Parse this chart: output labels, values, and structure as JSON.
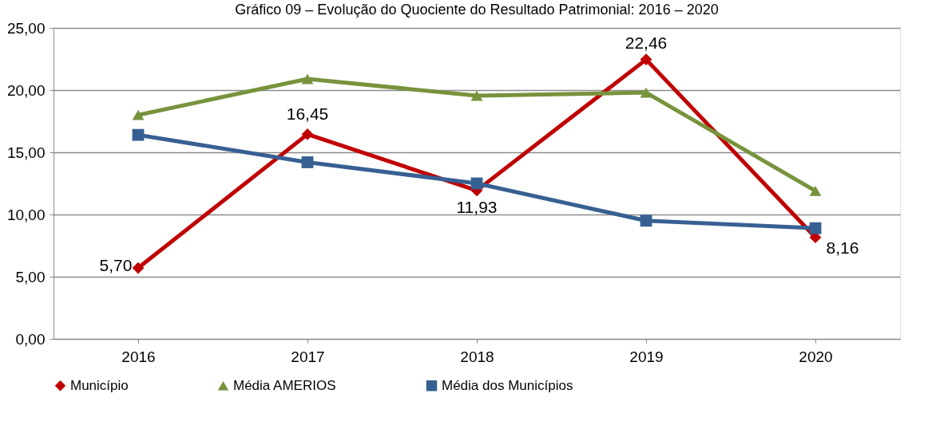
{
  "chart_data": {
    "type": "line",
    "title": "Gráfico 09 – Evolução do Quociente do Resultado Patrimonial: 2016 – 2020",
    "categories": [
      "2016",
      "2017",
      "2018",
      "2019",
      "2020"
    ],
    "series": [
      {
        "name": "Município",
        "color": "#c00000",
        "marker": "diamond",
        "values": [
          5.7,
          16.45,
          11.93,
          22.46,
          8.16
        ],
        "value_labels": [
          "5,70",
          "16,45",
          "11,93",
          "22,46",
          "8,16"
        ]
      },
      {
        "name": "Média AMERIOS",
        "color": "#77933c",
        "marker": "triangle",
        "values": [
          18.0,
          20.9,
          19.55,
          19.8,
          11.9
        ]
      },
      {
        "name": "Média dos Municípios",
        "color": "#376092",
        "marker": "square",
        "values": [
          16.4,
          14.2,
          12.5,
          9.5,
          8.9
        ]
      }
    ],
    "ylim": [
      0,
      25
    ],
    "yticks": [
      {
        "value": 0,
        "label": "0,00"
      },
      {
        "value": 5,
        "label": "5,00"
      },
      {
        "value": 10,
        "label": "10,00"
      },
      {
        "value": 15,
        "label": "15,00"
      },
      {
        "value": 20,
        "label": "20,00"
      },
      {
        "value": 25,
        "label": "25,00"
      }
    ],
    "grid": "y",
    "legend": "bottom",
    "line_style": "solid"
  }
}
